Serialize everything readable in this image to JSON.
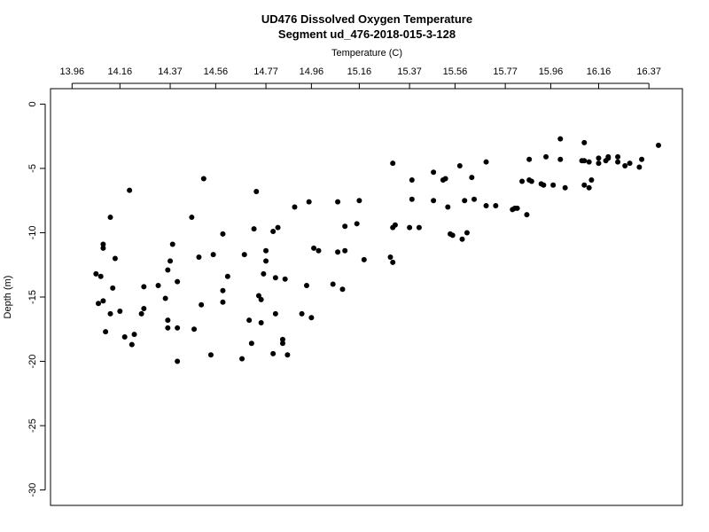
{
  "chart_data": {
    "type": "scatter",
    "title": "UD476 Dissolved Oxygen Temperature",
    "subtitle": "Segment ud_476-2018-015-3-128",
    "x_label": "Temperature (C)",
    "y_label": "Depth (m)",
    "color": "#000000",
    "xlim": [
      13.87,
      16.51
    ],
    "ylim": [
      -31.2,
      1.2
    ],
    "xticks": [
      13.96,
      14.16,
      14.37,
      14.56,
      14.77,
      14.96,
      15.16,
      15.37,
      15.56,
      15.77,
      15.96,
      16.16,
      16.37
    ],
    "yticks": [
      0,
      -5,
      -10,
      -15,
      -20,
      -25,
      -30
    ],
    "x": [
      14.06,
      14.07,
      14.08,
      14.09,
      14.09,
      14.09,
      14.1,
      14.12,
      14.13,
      14.12,
      14.14,
      14.16,
      14.18,
      14.2,
      14.21,
      14.22,
      14.25,
      14.26,
      14.26,
      14.32,
      14.35,
      14.36,
      14.36,
      14.36,
      14.37,
      14.38,
      14.4,
      14.4,
      14.4,
      14.46,
      14.47,
      14.49,
      14.5,
      14.51,
      14.54,
      14.55,
      14.59,
      14.59,
      14.59,
      14.61,
      14.67,
      14.68,
      14.7,
      14.71,
      14.72,
      14.73,
      14.74,
      14.75,
      14.75,
      14.76,
      14.77,
      14.77,
      14.8,
      14.8,
      14.81,
      14.81,
      14.82,
      14.84,
      14.84,
      14.85,
      14.86,
      14.89,
      14.92,
      14.94,
      14.95,
      14.96,
      14.97,
      14.99,
      15.05,
      15.07,
      15.07,
      15.09,
      15.1,
      15.1,
      15.15,
      15.16,
      15.18,
      15.29,
      15.3,
      15.3,
      15.31,
      15.3,
      15.37,
      15.38,
      15.38,
      15.41,
      15.47,
      15.47,
      15.51,
      15.52,
      15.53,
      15.54,
      15.55,
      15.58,
      15.59,
      15.6,
      15.61,
      15.63,
      15.64,
      15.69,
      15.69,
      15.73,
      15.8,
      15.81,
      15.82,
      15.86,
      15.84,
      15.87,
      15.87,
      15.88,
      15.92,
      15.93,
      15.94,
      15.97,
      16.0,
      16.0,
      16.02,
      16.09,
      16.1,
      16.1,
      16.1,
      16.12,
      16.12,
      16.13,
      16.16,
      16.16,
      16.19,
      16.2,
      16.2,
      16.24,
      16.24,
      16.27,
      16.29,
      16.33,
      16.34,
      16.41
    ],
    "y": [
      -13.2,
      -15.5,
      -13.4,
      -11.2,
      -10.9,
      -15.3,
      -17.7,
      -8.8,
      -14.3,
      -16.3,
      -12.0,
      -16.1,
      -18.1,
      -6.7,
      -18.7,
      -17.9,
      -16.3,
      -14.2,
      -15.9,
      -14.1,
      -15.1,
      -12.9,
      -16.8,
      -17.4,
      -12.2,
      -10.9,
      -17.4,
      -13.8,
      -20.0,
      -8.8,
      -17.5,
      -11.9,
      -15.6,
      -5.8,
      -19.5,
      -11.7,
      -10.1,
      -14.5,
      -15.4,
      -13.4,
      -19.8,
      -11.7,
      -16.8,
      -18.6,
      -9.7,
      -6.8,
      -14.9,
      -15.2,
      -17.0,
      -13.2,
      -12.2,
      -11.4,
      -9.9,
      -19.4,
      -13.5,
      -16.3,
      -9.6,
      -18.3,
      -18.6,
      -13.6,
      -19.5,
      -8.0,
      -16.3,
      -14.1,
      -7.6,
      -16.6,
      -11.2,
      -11.4,
      -14.0,
      -7.6,
      -11.5,
      -14.4,
      -11.4,
      -9.5,
      -9.3,
      -7.5,
      -12.1,
      -11.9,
      -4.6,
      -12.3,
      -9.4,
      -9.6,
      -9.6,
      -7.4,
      -5.9,
      -9.6,
      -5.3,
      -7.5,
      -5.9,
      -5.8,
      -8.0,
      -10.1,
      -10.2,
      -4.8,
      -10.5,
      -7.5,
      -10.0,
      -5.7,
      -7.4,
      -4.5,
      -7.9,
      -7.9,
      -8.2,
      -8.1,
      -8.1,
      -8.6,
      -6.0,
      -4.3,
      -5.9,
      -6.0,
      -6.2,
      -6.3,
      -4.1,
      -6.3,
      -2.7,
      -4.3,
      -6.5,
      -4.4,
      -3.0,
      -6.3,
      -4.4,
      -4.5,
      -6.5,
      -5.9,
      -4.6,
      -4.2,
      -4.4,
      -4.2,
      -4.1,
      -4.5,
      -4.1,
      -4.8,
      -4.6,
      -4.9,
      -4.3,
      -3.2
    ]
  }
}
